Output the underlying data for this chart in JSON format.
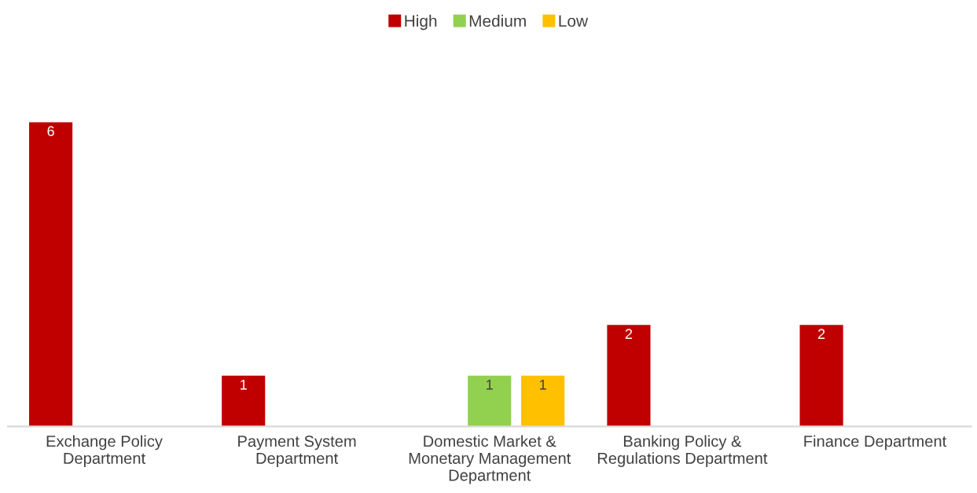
{
  "chart_data": {
    "type": "bar",
    "categories": [
      "Exchange Policy Department",
      "Payment System Department",
      "Domestic Market & Monetary Management Department",
      "Banking Policy & Regulations Department",
      "Finance Department"
    ],
    "series": [
      {
        "name": "High",
        "color": "#c00000",
        "values": [
          6,
          1,
          null,
          2,
          2
        ]
      },
      {
        "name": "Medium",
        "color": "#92d050",
        "values": [
          null,
          null,
          1,
          null,
          null
        ]
      },
      {
        "name": "Low",
        "color": "#ffc000",
        "values": [
          null,
          null,
          1,
          null,
          null
        ]
      }
    ],
    "data_labels": true,
    "legend": "top"
  }
}
